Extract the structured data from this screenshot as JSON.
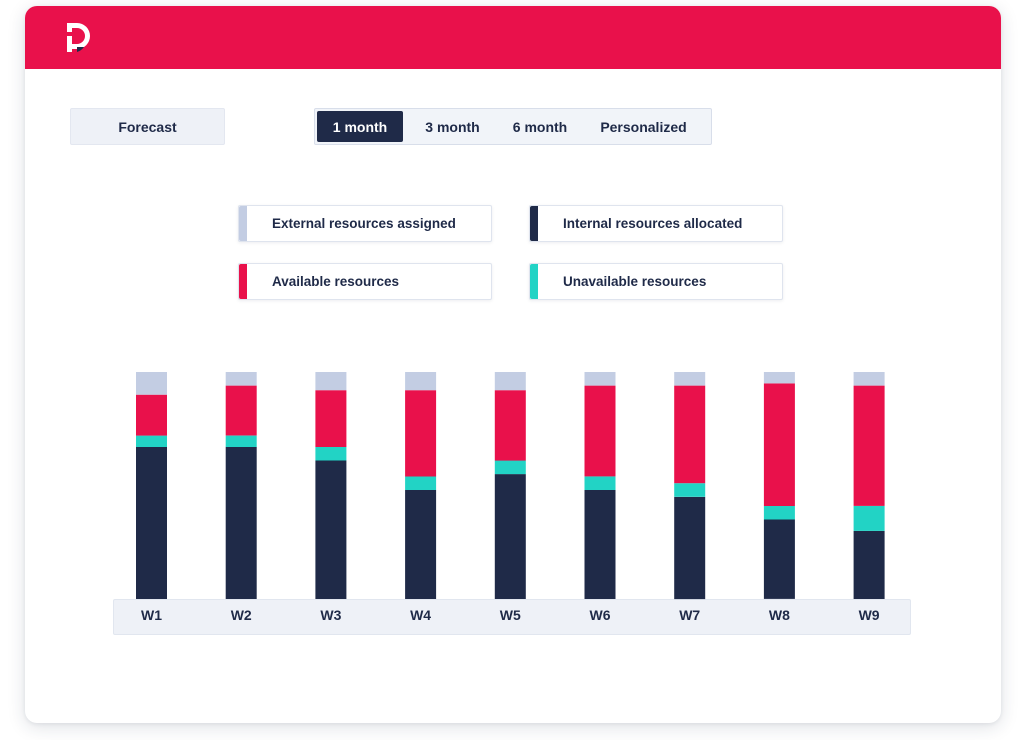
{
  "filters": {
    "forecast_label": "Forecast",
    "ranges": [
      {
        "label": "1 month",
        "active": true
      },
      {
        "label": "3 month",
        "active": false
      },
      {
        "label": "6 month",
        "active": false
      },
      {
        "label": "Personalized",
        "active": false
      }
    ]
  },
  "colors": {
    "header": "#e9114b",
    "external": "#c3cde3",
    "available": "#e9114b",
    "unavailable": "#22d3c5",
    "internal": "#1f2a48"
  },
  "chart_data": {
    "type": "bar",
    "stacked": true,
    "categories": [
      "W1",
      "W2",
      "W3",
      "W4",
      "W5",
      "W6",
      "W7",
      "W8",
      "W9"
    ],
    "series": [
      {
        "name": "Internal resources allocated",
        "color": "#1f2a48",
        "values": [
          67,
          67,
          61,
          48,
          55,
          48,
          45,
          35,
          30
        ]
      },
      {
        "name": "Unavailable resources",
        "color": "#22d3c5",
        "values": [
          5,
          5,
          6,
          6,
          6,
          6,
          6,
          6,
          11
        ]
      },
      {
        "name": "Available resources",
        "color": "#e9114b",
        "values": [
          18,
          22,
          25,
          38,
          31,
          40,
          43,
          54,
          53
        ]
      },
      {
        "name": "External resources assigned",
        "color": "#c3cde3",
        "values": [
          10,
          6,
          8,
          8,
          8,
          6,
          6,
          5,
          6
        ]
      }
    ],
    "legend": [
      {
        "label": "External resources assigned",
        "color": "#c3cde3"
      },
      {
        "label": "Internal resources allocated",
        "color": "#1f2a48"
      },
      {
        "label": "Available resources",
        "color": "#e9114b"
      },
      {
        "label": "Unavailable resources",
        "color": "#22d3c5"
      }
    ],
    "ylim": [
      0,
      100
    ],
    "grid": false,
    "legend_position": "top"
  }
}
